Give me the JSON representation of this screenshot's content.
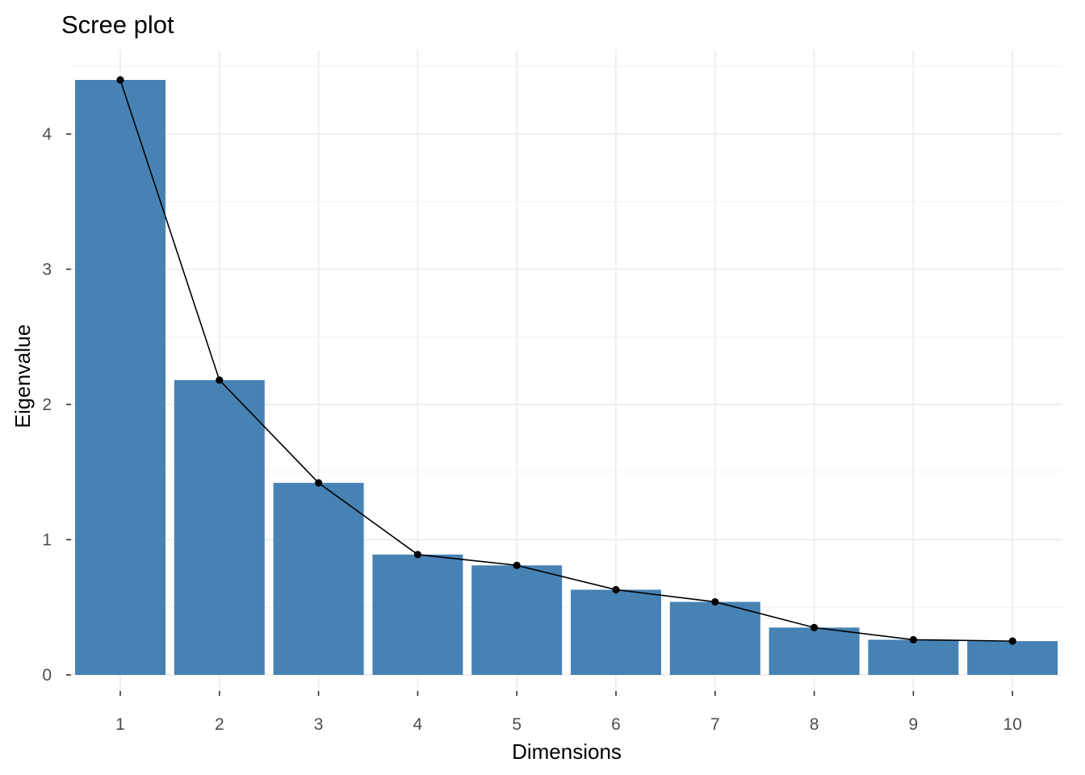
{
  "chart_data": {
    "type": "bar",
    "title": "Scree plot",
    "xlabel": "Dimensions",
    "ylabel": "Eigenvalue",
    "categories": [
      "1",
      "2",
      "3",
      "4",
      "5",
      "6",
      "7",
      "8",
      "9",
      "10"
    ],
    "values": [
      4.4,
      2.18,
      1.42,
      0.89,
      0.81,
      0.63,
      0.54,
      0.35,
      0.26,
      0.25
    ],
    "ylim": [
      0,
      4.4
    ],
    "yticks": [
      "0",
      "1",
      "2",
      "3",
      "4"
    ],
    "overlay": "line-with-points",
    "grid": true,
    "colors": {
      "bar": "#4682B4",
      "line": "#000000"
    }
  }
}
